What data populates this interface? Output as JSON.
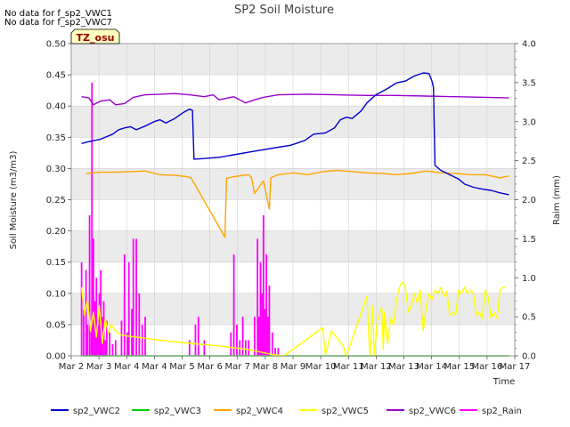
{
  "notes": [
    "No data for f_sp2_VWC1",
    "No data for f_sp2_VWC7"
  ],
  "badge": "TZ_osu",
  "colors": {
    "band": "#ebebeb",
    "grid": "#d0d0d0",
    "axis": "#999999",
    "badge_bg": "#ffffc0",
    "badge_text": "#990000"
  },
  "chart_data": {
    "type": "line",
    "title": "SP2 Soil Moisture",
    "xlabel": "Time",
    "ylabel": "Soil Moisture (m3/m3)",
    "y2label": "Raim (mm)",
    "x_ticks": [
      "Mar 2",
      "Mar 3",
      "Mar 4",
      "Mar 4",
      "Mar 5",
      "Mar 6",
      "Mar 7",
      "Mar 8",
      "Mar 9",
      "Mar 10",
      "Mar 11",
      "Mar 12",
      "Mar 13",
      "Mar 14",
      "Mar 15",
      "Mar 16",
      "Mar 17"
    ],
    "xlim": [
      0,
      15
    ],
    "ylim": [
      0,
      0.5
    ],
    "y_ticks": [
      "0.00",
      "0.05",
      "0.10",
      "0.15",
      "0.20",
      "0.25",
      "0.30",
      "0.35",
      "0.40",
      "0.45",
      "0.50"
    ],
    "y2lim": [
      0,
      4.0
    ],
    "y2_ticks": [
      "0.0",
      "0.5",
      "1.0",
      "1.5",
      "2.0",
      "2.5",
      "3.0",
      "3.5",
      "4.0"
    ],
    "legend_position": "bottom",
    "series": [
      {
        "name": "sp2_VWC2",
        "color": "#0000cc",
        "axis": "left",
        "points": [
          [
            0.35,
            0.34
          ],
          [
            0.6,
            0.343
          ],
          [
            1.0,
            0.347
          ],
          [
            1.4,
            0.355
          ],
          [
            1.6,
            0.362
          ],
          [
            1.8,
            0.365
          ],
          [
            2.0,
            0.367
          ],
          [
            2.2,
            0.362
          ],
          [
            2.5,
            0.368
          ],
          [
            2.8,
            0.375
          ],
          [
            3.0,
            0.378
          ],
          [
            3.2,
            0.373
          ],
          [
            3.5,
            0.38
          ],
          [
            3.8,
            0.39
          ],
          [
            4.0,
            0.395
          ],
          [
            4.1,
            0.393
          ],
          [
            4.15,
            0.315
          ],
          [
            4.5,
            0.316
          ],
          [
            5.0,
            0.318
          ],
          [
            5.5,
            0.322
          ],
          [
            6.0,
            0.326
          ],
          [
            6.5,
            0.33
          ],
          [
            7.0,
            0.334
          ],
          [
            7.4,
            0.337
          ],
          [
            7.6,
            0.34
          ],
          [
            7.9,
            0.345
          ],
          [
            8.2,
            0.355
          ],
          [
            8.6,
            0.357
          ],
          [
            8.9,
            0.365
          ],
          [
            9.1,
            0.378
          ],
          [
            9.3,
            0.382
          ],
          [
            9.5,
            0.38
          ],
          [
            9.8,
            0.392
          ],
          [
            10.0,
            0.405
          ],
          [
            10.3,
            0.418
          ],
          [
            10.7,
            0.428
          ],
          [
            11.0,
            0.437
          ],
          [
            11.3,
            0.44
          ],
          [
            11.6,
            0.448
          ],
          [
            11.9,
            0.453
          ],
          [
            12.1,
            0.452
          ],
          [
            12.2,
            0.44
          ],
          [
            12.25,
            0.43
          ],
          [
            12.3,
            0.305
          ],
          [
            12.5,
            0.297
          ],
          [
            12.8,
            0.29
          ],
          [
            13.1,
            0.283
          ],
          [
            13.3,
            0.275
          ],
          [
            13.6,
            0.27
          ],
          [
            13.9,
            0.267
          ],
          [
            14.2,
            0.265
          ],
          [
            14.5,
            0.261
          ],
          [
            14.8,
            0.258
          ]
        ]
      },
      {
        "name": "sp2_VWC3",
        "color": "#00cc00",
        "axis": "left",
        "points": [
          [
            0.35,
            0.0
          ],
          [
            14.8,
            0.0
          ]
        ]
      },
      {
        "name": "sp2_VWC4",
        "color": "#ffa500",
        "axis": "left",
        "points": [
          [
            0.5,
            0.292
          ],
          [
            1.0,
            0.294
          ],
          [
            1.5,
            0.294
          ],
          [
            2.0,
            0.295
          ],
          [
            2.5,
            0.296
          ],
          [
            3.0,
            0.29
          ],
          [
            3.5,
            0.289
          ],
          [
            3.9,
            0.287
          ],
          [
            4.05,
            0.285
          ],
          [
            5.2,
            0.19
          ],
          [
            5.25,
            0.284
          ],
          [
            5.5,
            0.287
          ],
          [
            6.0,
            0.29
          ],
          [
            6.1,
            0.285
          ],
          [
            6.2,
            0.26
          ],
          [
            6.5,
            0.28
          ],
          [
            6.7,
            0.235
          ],
          [
            6.75,
            0.285
          ],
          [
            7.0,
            0.29
          ],
          [
            7.5,
            0.293
          ],
          [
            8.0,
            0.29
          ],
          [
            8.5,
            0.295
          ],
          [
            9.0,
            0.297
          ],
          [
            9.5,
            0.295
          ],
          [
            10.0,
            0.293
          ],
          [
            10.5,
            0.292
          ],
          [
            11.0,
            0.29
          ],
          [
            11.5,
            0.292
          ],
          [
            12.0,
            0.296
          ],
          [
            12.5,
            0.293
          ],
          [
            13.0,
            0.292
          ],
          [
            13.5,
            0.29
          ],
          [
            14.0,
            0.29
          ],
          [
            14.5,
            0.285
          ],
          [
            14.8,
            0.288
          ]
        ]
      },
      {
        "name": "sp2_VWC5",
        "color": "#ffff00",
        "axis": "left",
        "points": [
          [
            0.35,
            0.11
          ],
          [
            0.45,
            0.065
          ],
          [
            0.55,
            0.09
          ],
          [
            0.65,
            0.04
          ],
          [
            0.75,
            0.07
          ],
          [
            0.85,
            0.03
          ],
          [
            0.95,
            0.08
          ],
          [
            1.05,
            0.02
          ],
          [
            1.15,
            0.06
          ],
          [
            1.25,
            0.035
          ],
          [
            1.35,
            0.05
          ],
          [
            1.5,
            0.04
          ],
          [
            1.7,
            0.033
          ],
          [
            3.0,
            0.025
          ],
          [
            4.0,
            0.02
          ],
          [
            5.0,
            0.016
          ],
          [
            6.0,
            0.01
          ],
          [
            6.8,
            0.002
          ],
          [
            7.2,
            0.0
          ],
          [
            8.5,
            0.045
          ],
          [
            8.6,
            0.002
          ],
          [
            8.8,
            0.04
          ],
          [
            9.2,
            0.015
          ],
          [
            9.3,
            0.0
          ],
          [
            10.0,
            0.095
          ],
          [
            10.1,
            0.0
          ],
          [
            10.2,
            0.08
          ],
          [
            10.25,
            0.0
          ],
          [
            10.35,
            0.055
          ],
          [
            10.5,
            0.078
          ],
          [
            10.55,
            0.01
          ],
          [
            10.6,
            0.07
          ],
          [
            10.7,
            0.02
          ],
          [
            10.8,
            0.06
          ],
          [
            10.9,
            0.05
          ],
          [
            11.0,
            0.09
          ],
          [
            11.1,
            0.11
          ],
          [
            11.2,
            0.118
          ],
          [
            11.3,
            0.11
          ],
          [
            11.4,
            0.07
          ],
          [
            11.5,
            0.08
          ],
          [
            11.6,
            0.1
          ],
          [
            11.7,
            0.085
          ],
          [
            11.8,
            0.105
          ],
          [
            11.9,
            0.04
          ],
          [
            12.0,
            0.075
          ],
          [
            12.1,
            0.1
          ],
          [
            12.2,
            0.09
          ],
          [
            12.3,
            0.105
          ],
          [
            12.4,
            0.1
          ],
          [
            12.5,
            0.11
          ],
          [
            12.6,
            0.095
          ],
          [
            12.7,
            0.103
          ],
          [
            12.8,
            0.065
          ],
          [
            12.9,
            0.07
          ],
          [
            13.0,
            0.065
          ],
          [
            13.1,
            0.105
          ],
          [
            13.2,
            0.1
          ],
          [
            13.3,
            0.11
          ],
          [
            13.4,
            0.1
          ],
          [
            13.5,
            0.105
          ],
          [
            13.6,
            0.1
          ],
          [
            13.7,
            0.065
          ],
          [
            13.8,
            0.07
          ],
          [
            13.9,
            0.06
          ],
          [
            14.0,
            0.105
          ],
          [
            14.1,
            0.095
          ],
          [
            14.2,
            0.06
          ],
          [
            14.3,
            0.07
          ],
          [
            14.4,
            0.06
          ],
          [
            14.5,
            0.105
          ],
          [
            14.6,
            0.11
          ],
          [
            14.7,
            0.11
          ]
        ]
      },
      {
        "name": "sp2_VWC6",
        "color": "#9900cc",
        "axis": "left",
        "points": [
          [
            0.35,
            0.415
          ],
          [
            0.6,
            0.413
          ],
          [
            0.75,
            0.402
          ],
          [
            1.0,
            0.408
          ],
          [
            1.3,
            0.41
          ],
          [
            1.5,
            0.402
          ],
          [
            1.8,
            0.404
          ],
          [
            2.1,
            0.414
          ],
          [
            2.5,
            0.418
          ],
          [
            3.0,
            0.419
          ],
          [
            3.5,
            0.42
          ],
          [
            4.0,
            0.418
          ],
          [
            4.5,
            0.415
          ],
          [
            4.8,
            0.418
          ],
          [
            5.0,
            0.41
          ],
          [
            5.5,
            0.415
          ],
          [
            5.7,
            0.41
          ],
          [
            5.9,
            0.405
          ],
          [
            6.2,
            0.41
          ],
          [
            6.5,
            0.414
          ],
          [
            7.0,
            0.418
          ],
          [
            8.0,
            0.419
          ],
          [
            9.0,
            0.418
          ],
          [
            10.0,
            0.417
          ],
          [
            11.0,
            0.417
          ],
          [
            12.0,
            0.416
          ],
          [
            13.0,
            0.415
          ],
          [
            14.0,
            0.414
          ],
          [
            14.8,
            0.413
          ]
        ]
      },
      {
        "name": "sp2_Rain",
        "color": "#ff00ff",
        "axis": "right",
        "kind": "spikes",
        "points": [
          [
            0.35,
            1.2
          ],
          [
            0.42,
            0.6
          ],
          [
            0.5,
            1.1
          ],
          [
            0.55,
            0.4
          ],
          [
            0.62,
            1.8
          ],
          [
            0.68,
            0.3
          ],
          [
            0.7,
            3.5
          ],
          [
            0.75,
            1.5
          ],
          [
            0.8,
            0.7
          ],
          [
            0.85,
            1.0
          ],
          [
            0.9,
            0.4
          ],
          [
            0.95,
            0.8
          ],
          [
            1.0,
            1.1
          ],
          [
            1.05,
            0.5
          ],
          [
            1.1,
            0.7
          ],
          [
            1.15,
            0.2
          ],
          [
            1.2,
            0.45
          ],
          [
            1.3,
            0.3
          ],
          [
            1.4,
            0.15
          ],
          [
            1.5,
            0.2
          ],
          [
            1.7,
            0.45
          ],
          [
            1.8,
            1.3
          ],
          [
            1.9,
            0.3
          ],
          [
            1.95,
            1.2
          ],
          [
            2.05,
            0.6
          ],
          [
            2.1,
            1.5
          ],
          [
            2.2,
            1.5
          ],
          [
            2.3,
            0.8
          ],
          [
            2.4,
            0.4
          ],
          [
            2.5,
            0.5
          ],
          [
            4.0,
            0.2
          ],
          [
            4.2,
            0.4
          ],
          [
            4.3,
            0.5
          ],
          [
            4.5,
            0.2
          ],
          [
            5.4,
            0.3
          ],
          [
            5.5,
            1.3
          ],
          [
            5.6,
            0.4
          ],
          [
            5.7,
            0.2
          ],
          [
            5.8,
            0.5
          ],
          [
            5.9,
            0.2
          ],
          [
            6.0,
            0.2
          ],
          [
            6.2,
            0.5
          ],
          [
            6.3,
            1.5
          ],
          [
            6.35,
            0.5
          ],
          [
            6.4,
            1.2
          ],
          [
            6.45,
            0.8
          ],
          [
            6.5,
            1.8
          ],
          [
            6.55,
            0.6
          ],
          [
            6.6,
            1.3
          ],
          [
            6.65,
            0.5
          ],
          [
            6.7,
            0.9
          ],
          [
            6.8,
            0.3
          ],
          [
            6.9,
            0.1
          ],
          [
            7.0,
            0.1
          ]
        ]
      }
    ]
  }
}
